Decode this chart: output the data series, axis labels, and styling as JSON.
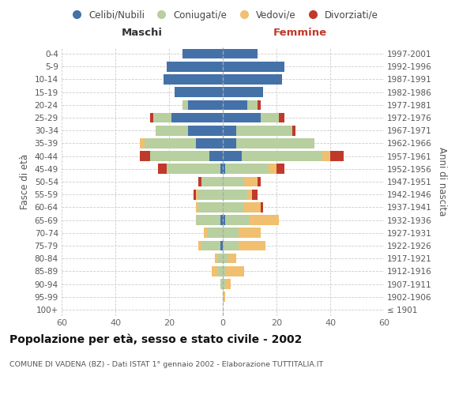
{
  "age_groups": [
    "100+",
    "95-99",
    "90-94",
    "85-89",
    "80-84",
    "75-79",
    "70-74",
    "65-69",
    "60-64",
    "55-59",
    "50-54",
    "45-49",
    "40-44",
    "35-39",
    "30-34",
    "25-29",
    "20-24",
    "15-19",
    "10-14",
    "5-9",
    "0-4"
  ],
  "birth_years": [
    "≤ 1901",
    "1902-1906",
    "1907-1911",
    "1912-1916",
    "1917-1921",
    "1922-1926",
    "1927-1931",
    "1932-1936",
    "1937-1941",
    "1942-1946",
    "1947-1951",
    "1952-1956",
    "1957-1961",
    "1962-1966",
    "1967-1971",
    "1972-1976",
    "1977-1981",
    "1982-1986",
    "1987-1991",
    "1992-1996",
    "1997-2001"
  ],
  "males": {
    "celibi": [
      0,
      0,
      0,
      0,
      0,
      1,
      0,
      1,
      0,
      0,
      0,
      1,
      5,
      10,
      13,
      19,
      13,
      18,
      22,
      21,
      15
    ],
    "coniugati": [
      0,
      0,
      1,
      2,
      2,
      7,
      6,
      9,
      9,
      9,
      8,
      20,
      22,
      19,
      12,
      7,
      2,
      0,
      0,
      0,
      0
    ],
    "vedovi": [
      0,
      0,
      0,
      2,
      1,
      1,
      1,
      0,
      1,
      1,
      0,
      0,
      0,
      2,
      0,
      0,
      0,
      0,
      0,
      0,
      0
    ],
    "divorziati": [
      0,
      0,
      0,
      0,
      0,
      0,
      0,
      0,
      0,
      1,
      1,
      3,
      4,
      0,
      0,
      1,
      0,
      0,
      0,
      0,
      0
    ]
  },
  "females": {
    "nubili": [
      0,
      0,
      0,
      0,
      0,
      0,
      0,
      1,
      0,
      0,
      0,
      1,
      7,
      5,
      5,
      14,
      9,
      15,
      22,
      23,
      13
    ],
    "coniugate": [
      0,
      0,
      1,
      1,
      2,
      6,
      6,
      9,
      8,
      9,
      8,
      16,
      30,
      29,
      21,
      7,
      4,
      0,
      0,
      0,
      0
    ],
    "vedove": [
      0,
      1,
      2,
      7,
      3,
      10,
      8,
      11,
      6,
      2,
      5,
      3,
      3,
      0,
      0,
      0,
      0,
      0,
      0,
      0,
      0
    ],
    "divorziate": [
      0,
      0,
      0,
      0,
      0,
      0,
      0,
      0,
      1,
      2,
      1,
      3,
      5,
      0,
      1,
      2,
      1,
      0,
      0,
      0,
      0
    ]
  },
  "colors": {
    "celibi_nubili": "#4472a8",
    "coniugati": "#b8cfa0",
    "vedovi": "#f0c070",
    "divorziati": "#c0392b"
  },
  "xlim": 60,
  "title": "Popolazione per età, sesso e stato civile - 2002",
  "subtitle": "COMUNE DI VADENA (BZ) - Dati ISTAT 1° gennaio 2002 - Elaborazione TUTTITALIA.IT",
  "xlabel_left": "Maschi",
  "xlabel_right": "Femmine",
  "ylabel_left": "Fasce di età",
  "ylabel_right": "Anni di nascita",
  "legend_labels": [
    "Celibi/Nubili",
    "Coniugati/e",
    "Vedovi/e",
    "Divorziati/e"
  ],
  "bg_color": "#ffffff"
}
